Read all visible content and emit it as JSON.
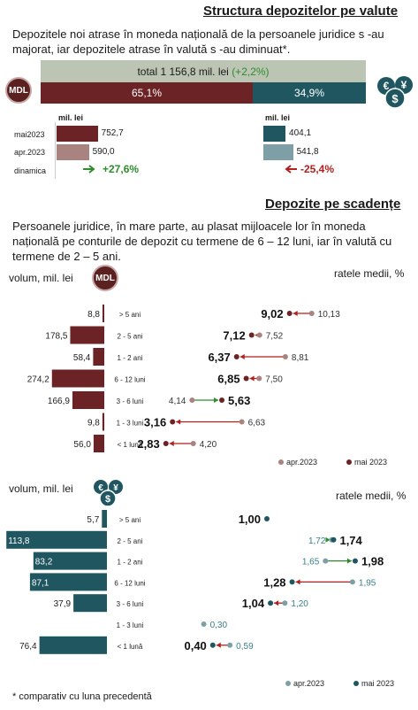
{
  "section1": {
    "title": "Structura depozitelor pe valute",
    "text": "Depozitele noi atrase în moneda națională de la persoanele juridice s -au majorat, iar depozitele atrase în valută s -au diminuat*.",
    "total_label": "total 1 156,8 mil. lei",
    "total_change": "(+2,2%)",
    "mdl_share": "65,1%",
    "fx_share": "34,9%",
    "mdl_badge": "MDL",
    "unit_left": "mil. lei",
    "unit_right": "mil. lei",
    "rows": [
      {
        "label": "mai2023",
        "mdl_value": 752.7,
        "mdl_text": "752,7",
        "fx_value": 404.1,
        "fx_text": "404,1"
      },
      {
        "label": "apr.2023",
        "mdl_value": 590.0,
        "mdl_text": "590,0",
        "fx_value": 541.8,
        "fx_text": "541,8"
      }
    ],
    "dynamics_label": "dinamica",
    "mdl_dynamics": "+27,6%",
    "fx_dynamics": "-25,4%"
  },
  "section2": {
    "title": "Depozite pe scadențe",
    "text": "Persoanele juridice, în mare parte, au plasat mijloacele lor în moneda națională pe conturile de depozit cu termene de 6 – 12 luni, iar în valută cu termene de 2 – 5 ani.",
    "asterisk_note": "* comparativ cu luna precedentă"
  },
  "colors": {
    "mdl": "#6b2325",
    "mdl_light": "#a88380",
    "fx": "#1f5660",
    "fx_light": "#7e9fa5",
    "total_bar": "#bcc5b4",
    "green": "#2d8c2d",
    "red": "#b21f1f"
  },
  "chart_data": [
    {
      "type": "bar",
      "title": "volum, mil. lei",
      "currency": "MDL",
      "categories": [
        "> 5 ani",
        "2 - 5 ani",
        "1 - 2 ani",
        "6 - 12 luni",
        "3 - 6 luni",
        "1 - 3 luni",
        "< 1 lună"
      ],
      "values": [
        8.8,
        178.5,
        58.4,
        274.2,
        166.9,
        9.8,
        56.0
      ],
      "value_labels": [
        "8,8",
        "178,5",
        "58,4",
        "274,2",
        "166,9",
        "9,8",
        "56,0"
      ]
    },
    {
      "type": "dot",
      "title": "ratele medii, %",
      "currency": "MDL",
      "categories": [
        "> 5 ani",
        "2 - 5 ani",
        "1 - 2 ani",
        "6 - 12 luni",
        "3 - 6 luni",
        "1 - 3 luni",
        "< 1 lună"
      ],
      "series": [
        {
          "name": "apr.2023",
          "values": [
            10.13,
            7.52,
            8.81,
            7.5,
            4.14,
            6.63,
            4.2
          ],
          "labels": [
            "10,13",
            "7,52",
            "8,81",
            "7,50",
            "4,14",
            "6,63",
            "4,20"
          ]
        },
        {
          "name": "mai 2023",
          "values": [
            9.02,
            7.12,
            6.37,
            6.85,
            5.63,
            3.16,
            2.83
          ],
          "labels": [
            "9,02",
            "7,12",
            "6,37",
            "6,85",
            "5,63",
            "3,16",
            "2,83"
          ]
        }
      ],
      "xlim": [
        2,
        10.5
      ]
    },
    {
      "type": "bar",
      "title": "volum, mil. lei",
      "currency": "FX",
      "categories": [
        "> 5 ani",
        "2 - 5 ani",
        "1 - 2 ani",
        "6 - 12 luni",
        "3 - 6 luni",
        "1 - 3 luni",
        "< 1 lună"
      ],
      "values": [
        5.7,
        113.8,
        83.2,
        87.1,
        37.9,
        null,
        76.4
      ],
      "value_labels": [
        "5,7",
        "113,8",
        "83,2",
        "87,1",
        "37,9",
        "",
        "76,4"
      ]
    },
    {
      "type": "dot",
      "title": "ratele medii, %",
      "currency": "FX",
      "categories": [
        "> 5 ani",
        "2 - 5 ani",
        "1 - 2 ani",
        "6 - 12 luni",
        "3 - 6 luni",
        "1 - 3 luni",
        "< 1 lună"
      ],
      "series": [
        {
          "name": "apr.2023",
          "values": [
            null,
            1.72,
            1.65,
            1.95,
            1.2,
            0.3,
            0.59
          ],
          "labels": [
            "",
            "1,72",
            "1,65",
            "1,95",
            "1,20",
            "0,30",
            "0,59"
          ]
        },
        {
          "name": "mai 2023",
          "values": [
            1.0,
            1.74,
            1.98,
            1.28,
            1.04,
            null,
            0.4
          ],
          "labels": [
            "1,00",
            "1,74",
            "1,98",
            "1,28",
            "1,04",
            "",
            "0,40"
          ]
        }
      ],
      "xlim": [
        0,
        2.1
      ]
    }
  ]
}
